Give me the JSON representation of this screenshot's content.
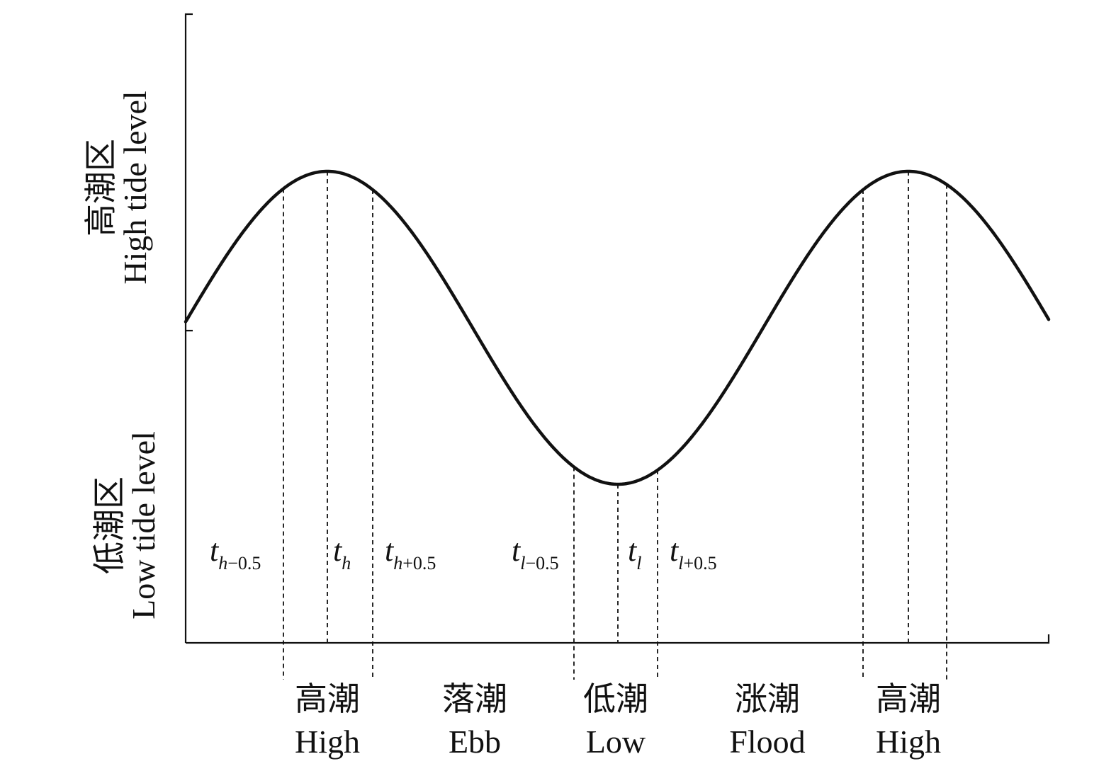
{
  "y_axis": {
    "upper_region": {
      "zh": "高潮区",
      "en": "High tide level"
    },
    "lower_region": {
      "zh": "低潮区",
      "en": "Low tide level"
    }
  },
  "time_markers": [
    {
      "base": "t",
      "sub_var": "h",
      "sub_rest": "−0.5"
    },
    {
      "base": "t",
      "sub_var": "h",
      "sub_rest": ""
    },
    {
      "base": "t",
      "sub_var": "h",
      "sub_rest": "+0.5"
    },
    {
      "base": "t",
      "sub_var": "l",
      "sub_rest": "−0.5"
    },
    {
      "base": "t",
      "sub_var": "l",
      "sub_rest": ""
    },
    {
      "base": "t",
      "sub_var": "l",
      "sub_rest": "+0.5"
    }
  ],
  "phases": [
    {
      "zh": "高潮",
      "en": "High"
    },
    {
      "zh": "落潮",
      "en": "Ebb"
    },
    {
      "zh": "低潮",
      "en": "Low"
    },
    {
      "zh": "涨潮",
      "en": "Flood"
    },
    {
      "zh": "高潮",
      "en": "High"
    }
  ]
}
